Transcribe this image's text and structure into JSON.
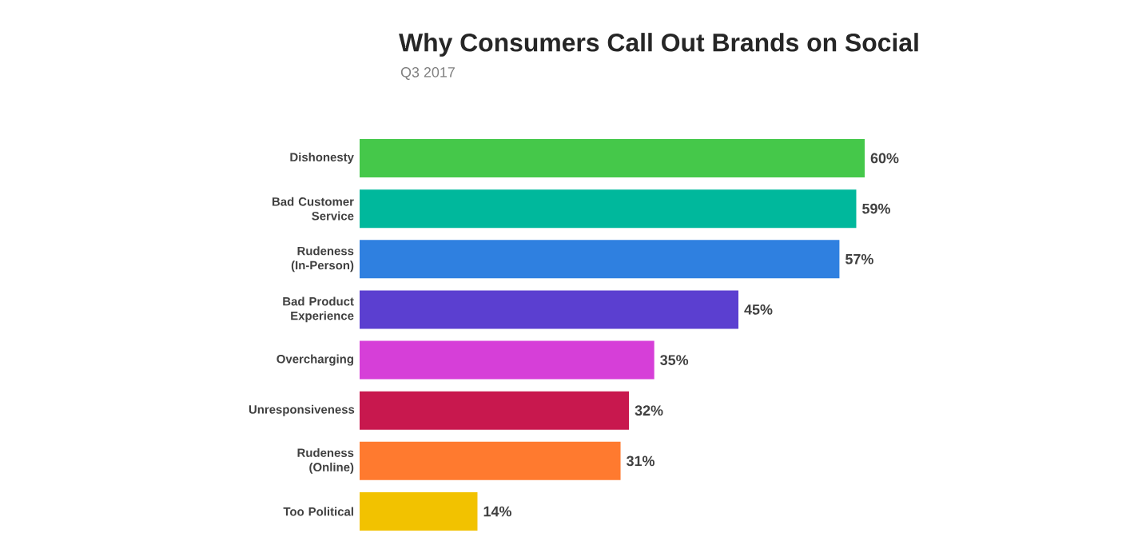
{
  "chart_data": {
    "type": "bar",
    "orientation": "horizontal",
    "title": "Why Consumers Call Out Brands on Social",
    "subtitle": "Q3 2017",
    "categories": [
      "Dishonesty",
      "Bad Customer Service",
      "Rudeness (In-Person)",
      "Bad Product Experience",
      "Overcharging",
      "Unresponsiveness",
      "Rudeness (Online)",
      "Too Political"
    ],
    "values": [
      60,
      59,
      57,
      45,
      35,
      32,
      31,
      14
    ],
    "value_labels": [
      "60%",
      "59%",
      "57%",
      "45%",
      "35%",
      "32%",
      "31%",
      "14%"
    ],
    "colors": [
      "#45c84a",
      "#00b89c",
      "#2f80e0",
      "#5b3fd0",
      "#d63fd8",
      "#c8184e",
      "#ff7a2f",
      "#f2c200"
    ]
  }
}
